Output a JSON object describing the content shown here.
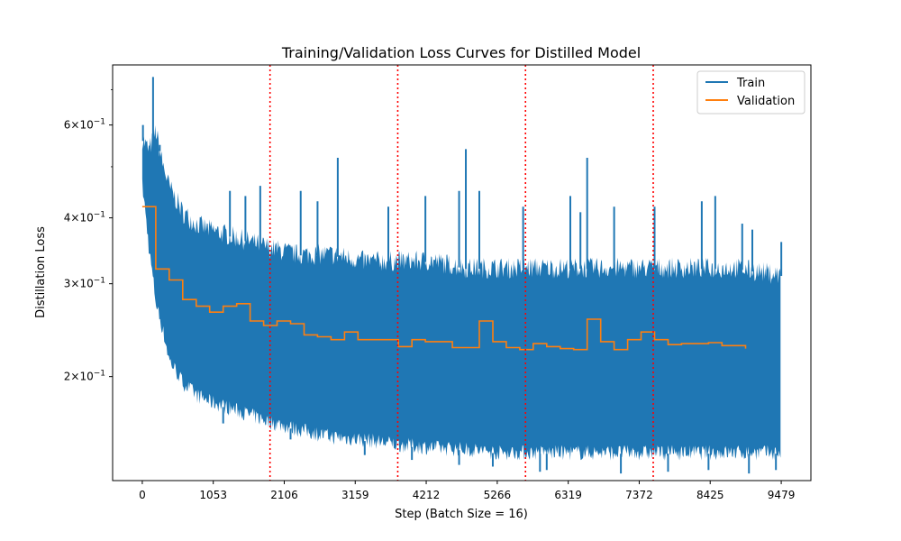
{
  "chart_data": {
    "type": "line",
    "title": "Training/Validation Loss Curves for Distilled Model",
    "xlabel": "Step (Batch Size = 16)",
    "ylabel": "Distillation Loss",
    "xlim": [
      -440,
      9919
    ],
    "ylim": [
      0.127,
      0.78
    ],
    "y_scale": "log",
    "x_ticks": [
      0,
      1053,
      2106,
      3159,
      4212,
      5266,
      6319,
      7372,
      8425,
      9479
    ],
    "x_tick_labels": [
      "0",
      "1053",
      "2106",
      "3159",
      "4212",
      "5266",
      "6319",
      "7372",
      "8425",
      "9479"
    ],
    "y_major_ticks": [
      0.2,
      0.3,
      0.4,
      0.6
    ],
    "y_tick_labels": [
      {
        "mant": "2",
        "exp": "−1"
      },
      {
        "mant": "3",
        "exp": "−1"
      },
      {
        "mant": "4",
        "exp": "−1"
      },
      {
        "mant": "6",
        "exp": "−1"
      }
    ],
    "y_minor_ticks": [
      0.5,
      0.7
    ],
    "epoch_markers": [
      1895,
      3790,
      5685,
      7580
    ],
    "legend_position": "upper right",
    "grid": false,
    "series": [
      {
        "name": "Train",
        "color": "#1f77b4",
        "envelope": {
          "x": [
            0,
            100,
            200,
            300,
            400,
            600,
            800,
            1000,
            1300,
            1600,
            1900,
            2300,
            2800,
            3300,
            3800,
            4300,
            4800,
            5300,
            5800,
            6300,
            6800,
            7300,
            7800,
            8300,
            8800,
            9479
          ],
          "upper": [
            0.58,
            0.55,
            0.6,
            0.52,
            0.47,
            0.42,
            0.4,
            0.39,
            0.38,
            0.37,
            0.36,
            0.35,
            0.35,
            0.34,
            0.34,
            0.34,
            0.33,
            0.33,
            0.33,
            0.33,
            0.33,
            0.33,
            0.33,
            0.33,
            0.33,
            0.32
          ],
          "lower": [
            0.45,
            0.34,
            0.27,
            0.24,
            0.21,
            0.19,
            0.18,
            0.175,
            0.17,
            0.165,
            0.16,
            0.155,
            0.15,
            0.148,
            0.145,
            0.143,
            0.142,
            0.14,
            0.14,
            0.14,
            0.14,
            0.14,
            0.14,
            0.14,
            0.14,
            0.14
          ]
        },
        "peaks": [
          {
            "x": 10,
            "y": 0.6
          },
          {
            "x": 160,
            "y": 0.74
          },
          {
            "x": 260,
            "y": 0.55
          },
          {
            "x": 1300,
            "y": 0.45
          },
          {
            "x": 1530,
            "y": 0.44
          },
          {
            "x": 1750,
            "y": 0.46
          },
          {
            "x": 2350,
            "y": 0.45
          },
          {
            "x": 2600,
            "y": 0.43
          },
          {
            "x": 2900,
            "y": 0.52
          },
          {
            "x": 3650,
            "y": 0.42
          },
          {
            "x": 4200,
            "y": 0.44
          },
          {
            "x": 4700,
            "y": 0.45
          },
          {
            "x": 4800,
            "y": 0.54
          },
          {
            "x": 5000,
            "y": 0.45
          },
          {
            "x": 5650,
            "y": 0.42
          },
          {
            "x": 6350,
            "y": 0.44
          },
          {
            "x": 6600,
            "y": 0.52
          },
          {
            "x": 6500,
            "y": 0.41
          },
          {
            "x": 7000,
            "y": 0.42
          },
          {
            "x": 7600,
            "y": 0.42
          },
          {
            "x": 8300,
            "y": 0.43
          },
          {
            "x": 8500,
            "y": 0.44
          },
          {
            "x": 8900,
            "y": 0.39
          },
          {
            "x": 9050,
            "y": 0.38
          },
          {
            "x": 9480,
            "y": 0.36
          }
        ],
        "dips": [
          {
            "x": 1200,
            "y": 0.163
          },
          {
            "x": 2200,
            "y": 0.152
          },
          {
            "x": 3300,
            "y": 0.142
          },
          {
            "x": 4000,
            "y": 0.139
          },
          {
            "x": 4700,
            "y": 0.136
          },
          {
            "x": 5200,
            "y": 0.135
          },
          {
            "x": 5900,
            "y": 0.132
          },
          {
            "x": 6000,
            "y": 0.133
          },
          {
            "x": 7100,
            "y": 0.131
          },
          {
            "x": 7800,
            "y": 0.132
          },
          {
            "x": 8400,
            "y": 0.133
          },
          {
            "x": 9000,
            "y": 0.131
          },
          {
            "x": 9400,
            "y": 0.133
          }
        ]
      },
      {
        "name": "Validation",
        "color": "#ff7f0e",
        "x": [
          0,
          200,
          400,
          600,
          800,
          1000,
          1200,
          1400,
          1600,
          1800,
          2000,
          2200,
          2400,
          2600,
          2800,
          3000,
          3200,
          3400,
          3600,
          3800,
          4000,
          4200,
          4400,
          4600,
          4800,
          5000,
          5200,
          5400,
          5600,
          5800,
          6000,
          6200,
          6400,
          6600,
          6800,
          7000,
          7200,
          7400,
          7600,
          7800,
          8000,
          8200,
          8400,
          8600,
          8800,
          8950
        ],
        "y": [
          0.42,
          0.32,
          0.305,
          0.28,
          0.272,
          0.265,
          0.272,
          0.275,
          0.255,
          0.25,
          0.255,
          0.252,
          0.24,
          0.238,
          0.235,
          0.243,
          0.235,
          0.235,
          0.235,
          0.228,
          0.235,
          0.233,
          0.233,
          0.227,
          0.227,
          0.255,
          0.233,
          0.227,
          0.225,
          0.231,
          0.228,
          0.226,
          0.225,
          0.257,
          0.233,
          0.225,
          0.235,
          0.243,
          0.235,
          0.23,
          0.231,
          0.231,
          0.232,
          0.229,
          0.229,
          0.226
        ]
      }
    ]
  }
}
